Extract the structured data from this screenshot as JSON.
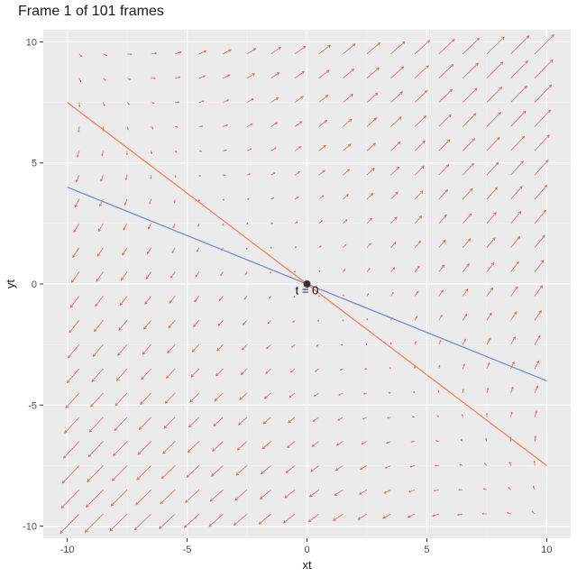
{
  "title": "Frame 1 of 101 frames",
  "chart_data": {
    "type": "line",
    "xlabel": "xt",
    "ylabel": "yt",
    "xlim": [
      -11,
      11
    ],
    "ylim": [
      -10.5,
      10.5
    ],
    "x_ticks": [
      -10,
      -5,
      0,
      5,
      10
    ],
    "y_ticks": [
      -10,
      -5,
      0,
      5,
      10
    ],
    "x_tick_labels": [
      "-10",
      "-5",
      "0",
      "5",
      "10"
    ],
    "y_tick_labels": [
      "-10",
      "-5",
      "0",
      "5",
      "10"
    ],
    "grid": true,
    "background": "#ebebeb",
    "series": [
      {
        "color": "#f08060",
        "x": [
          -10,
          10
        ],
        "y": [
          7.5,
          -7.5
        ]
      },
      {
        "color": "#7b8dbf",
        "x": [
          -10,
          10
        ],
        "y": [
          4,
          -4
        ]
      }
    ],
    "point": {
      "x": 0,
      "y": 0,
      "color": "#333333"
    },
    "annotation": {
      "text": "t = 0",
      "x": 0,
      "y": -0.25
    },
    "vector_field": {
      "color": "#c04a3a",
      "x_grid": [
        -9.5,
        -8.5,
        -7.5,
        -6.5,
        -5.5,
        -4.5,
        -3.5,
        -2.5,
        -1.5,
        -0.5,
        0.5,
        1.5,
        2.5,
        3.5,
        4.5,
        5.5,
        6.5,
        7.5,
        8.5,
        9.5
      ],
      "y_grid": [
        -9.5,
        -8.5,
        -7.5,
        -6.5,
        -5.5,
        -4.5,
        -3.5,
        -2.5,
        -1.5,
        -0.5,
        0.5,
        1.5,
        2.5,
        3.5,
        4.5,
        5.5,
        6.5,
        7.5,
        8.5,
        9.5
      ],
      "a": [
        0.036,
        0.0475
      ],
      "b": [
        0.0475,
        0.036
      ]
    }
  }
}
